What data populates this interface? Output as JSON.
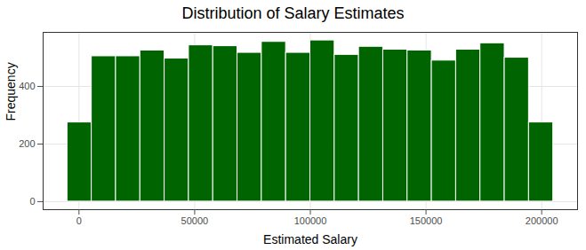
{
  "chart_data": {
    "type": "histogram",
    "title": "Distribution of Salary Estimates",
    "x_label": "Estimated Salary",
    "y_label": "Frequency",
    "bins": [
      -5000,
      5500,
      16000,
      26500,
      37000,
      47500,
      58000,
      68500,
      79000,
      89500,
      100000,
      110500,
      121000,
      131500,
      142000,
      152500,
      163000,
      173500,
      184000,
      194500,
      205000
    ],
    "values": [
      275,
      505,
      505,
      525,
      497,
      543,
      540,
      517,
      555,
      517,
      560,
      510,
      538,
      528,
      525,
      490,
      528,
      550,
      500,
      275
    ],
    "color": "#006400",
    "xlim": [
      -15500,
      215500
    ],
    "xticks": [
      0,
      50000,
      100000,
      150000,
      200000
    ],
    "ylim": [
      -28,
      588
    ],
    "yticks": [
      0,
      200,
      400
    ],
    "grid": true
  }
}
